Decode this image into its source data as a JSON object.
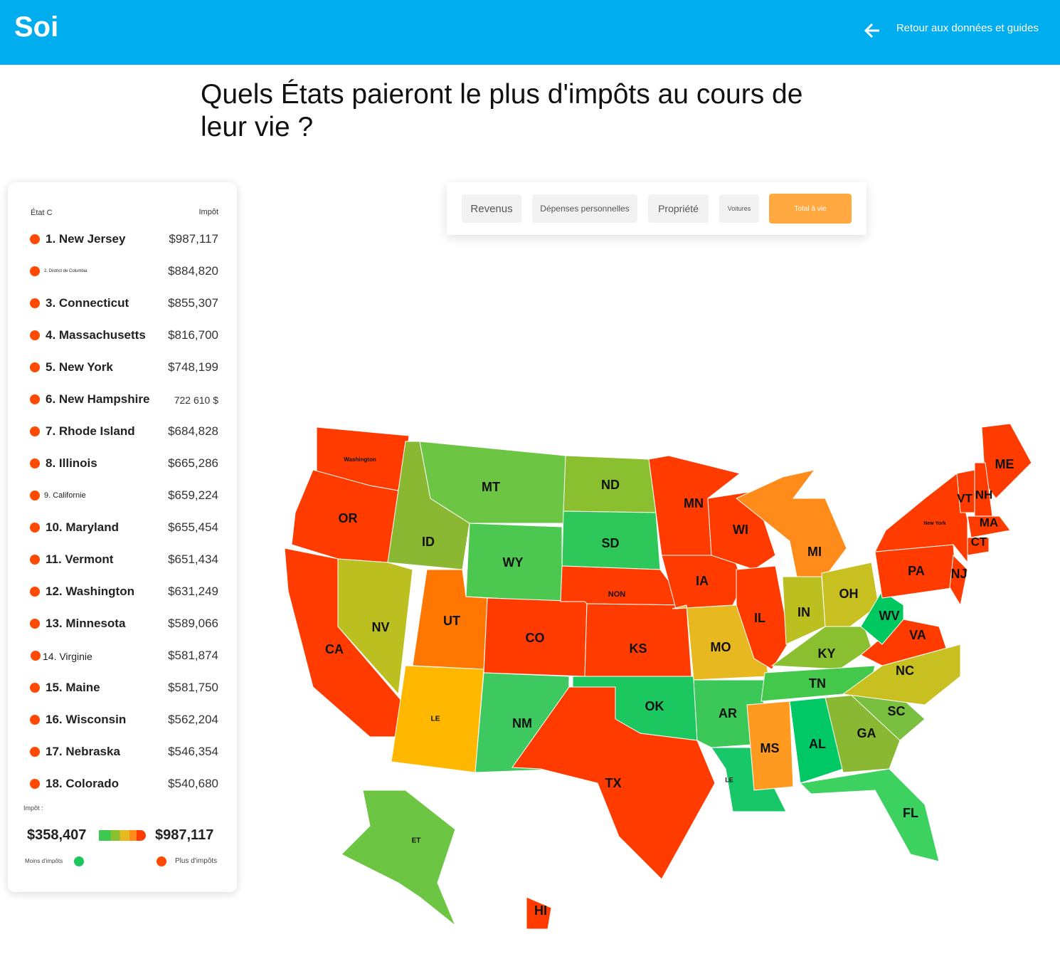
{
  "header": {
    "logo": "Soi",
    "back_link": "Retour aux données et guides"
  },
  "title": "Quels États paieront le plus d'impôts au cours de leur vie ?",
  "table": {
    "columns": [
      "État C",
      "Impôt"
    ],
    "rows": [
      [
        "1. New Jersey",
        "$987,117"
      ],
      [
        "2. District de Columbia",
        "$884,820"
      ],
      [
        "3. Connecticut",
        "$855,307"
      ],
      [
        "4. Massachusetts",
        "$816,700"
      ],
      [
        "5. New York",
        "$748,199"
      ],
      [
        "6. New Hampshire",
        "722 610 $"
      ],
      [
        "7. Rhode Island",
        "$684,828"
      ],
      [
        "8. Illinois",
        "$665,286"
      ],
      [
        "9. Californie",
        "$659,224"
      ],
      [
        "10. Maryland",
        "$655,454"
      ],
      [
        "11. Vermont",
        "$651,434"
      ],
      [
        "12. Washington",
        "$631,249"
      ],
      [
        "13. Minnesota",
        "$589,066"
      ],
      [
        "14. Virginie",
        "$581,874"
      ],
      [
        "15. Maine",
        "$581,750"
      ],
      [
        "16. Wisconsin",
        "$562,204"
      ],
      [
        "17. Nebraska",
        "$546,354"
      ],
      [
        "18. Colorado",
        "$540,680"
      ]
    ]
  },
  "legend": {
    "label": "Impôt :",
    "min": "$358,407",
    "max": "$987,117",
    "less": "Moins d'impôts",
    "more": "Plus d'impôts"
  },
  "tabs": [
    "Revenus",
    "Dépenses personnelles",
    "Propriété",
    "Voitures",
    "Total à vie"
  ],
  "map": {
    "states": [
      {
        "label": "Washington",
        "color": "#ff3b00"
      },
      {
        "label": "OR",
        "color": "#ff3b00"
      },
      {
        "label": "CA",
        "color": "#ff3b00"
      },
      {
        "label": "NV",
        "color": "#bcbf20"
      },
      {
        "label": "ID",
        "color": "#8ab832"
      },
      {
        "label": "MT",
        "color": "#6cc644"
      },
      {
        "label": "WY",
        "color": "#4cc850"
      },
      {
        "label": "UT",
        "color": "#ff7700"
      },
      {
        "label": "CO",
        "color": "#ff3b00"
      },
      {
        "label": "LE",
        "color": "#ffb700"
      },
      {
        "label": "NM",
        "color": "#3dc860"
      },
      {
        "label": "ND",
        "color": "#8ac030"
      },
      {
        "label": "SD",
        "color": "#2ec85a"
      },
      {
        "label": "NON",
        "color": "#ff3b00"
      },
      {
        "label": "KS",
        "color": "#ff3b00"
      },
      {
        "label": "OK",
        "color": "#1dc760"
      },
      {
        "label": "TX",
        "color": "#ff3b00"
      },
      {
        "label": "MN",
        "color": "#ff3b00"
      },
      {
        "label": "IA",
        "color": "#ff3b00"
      },
      {
        "label": "MO",
        "color": "#e8b820"
      },
      {
        "label": "AR",
        "color": "#3cc858"
      },
      {
        "label": "LE",
        "color": "#18c868"
      },
      {
        "label": "WI",
        "color": "#ff3b00"
      },
      {
        "label": "IL",
        "color": "#ff3b00"
      },
      {
        "label": "MI",
        "color": "#ff8c1a"
      },
      {
        "label": "IN",
        "color": "#bcbf20"
      },
      {
        "label": "OH",
        "color": "#c8c020"
      },
      {
        "label": "KY",
        "color": "#8ac030"
      },
      {
        "label": "TN",
        "color": "#44c84c"
      },
      {
        "label": "MS",
        "color": "#ff9a20"
      },
      {
        "label": "AL",
        "color": "#00c864"
      },
      {
        "label": "GA",
        "color": "#8ab832"
      },
      {
        "label": "FL",
        "color": "#3dd160"
      },
      {
        "label": "SC",
        "color": "#7ac040"
      },
      {
        "label": "NC",
        "color": "#c8c020"
      },
      {
        "label": "VA",
        "color": "#ff3b00"
      },
      {
        "label": "WV",
        "color": "#00c860"
      },
      {
        "label": "PA",
        "color": "#ff3b00"
      },
      {
        "label": "New York",
        "color": "#ff3b00"
      },
      {
        "label": "NJ",
        "color": "#ff3b00"
      },
      {
        "label": "ME",
        "color": "#ff3b00"
      },
      {
        "label": "VT",
        "color": "#ff3b00"
      },
      {
        "label": "NH",
        "color": "#ff3b00"
      },
      {
        "label": "MA",
        "color": "#ff3b00"
      },
      {
        "label": "CT",
        "color": "#ff3b00"
      },
      {
        "label": "ET",
        "color": "#6cc644"
      },
      {
        "label": "HI",
        "color": "#ff3b00"
      }
    ]
  }
}
